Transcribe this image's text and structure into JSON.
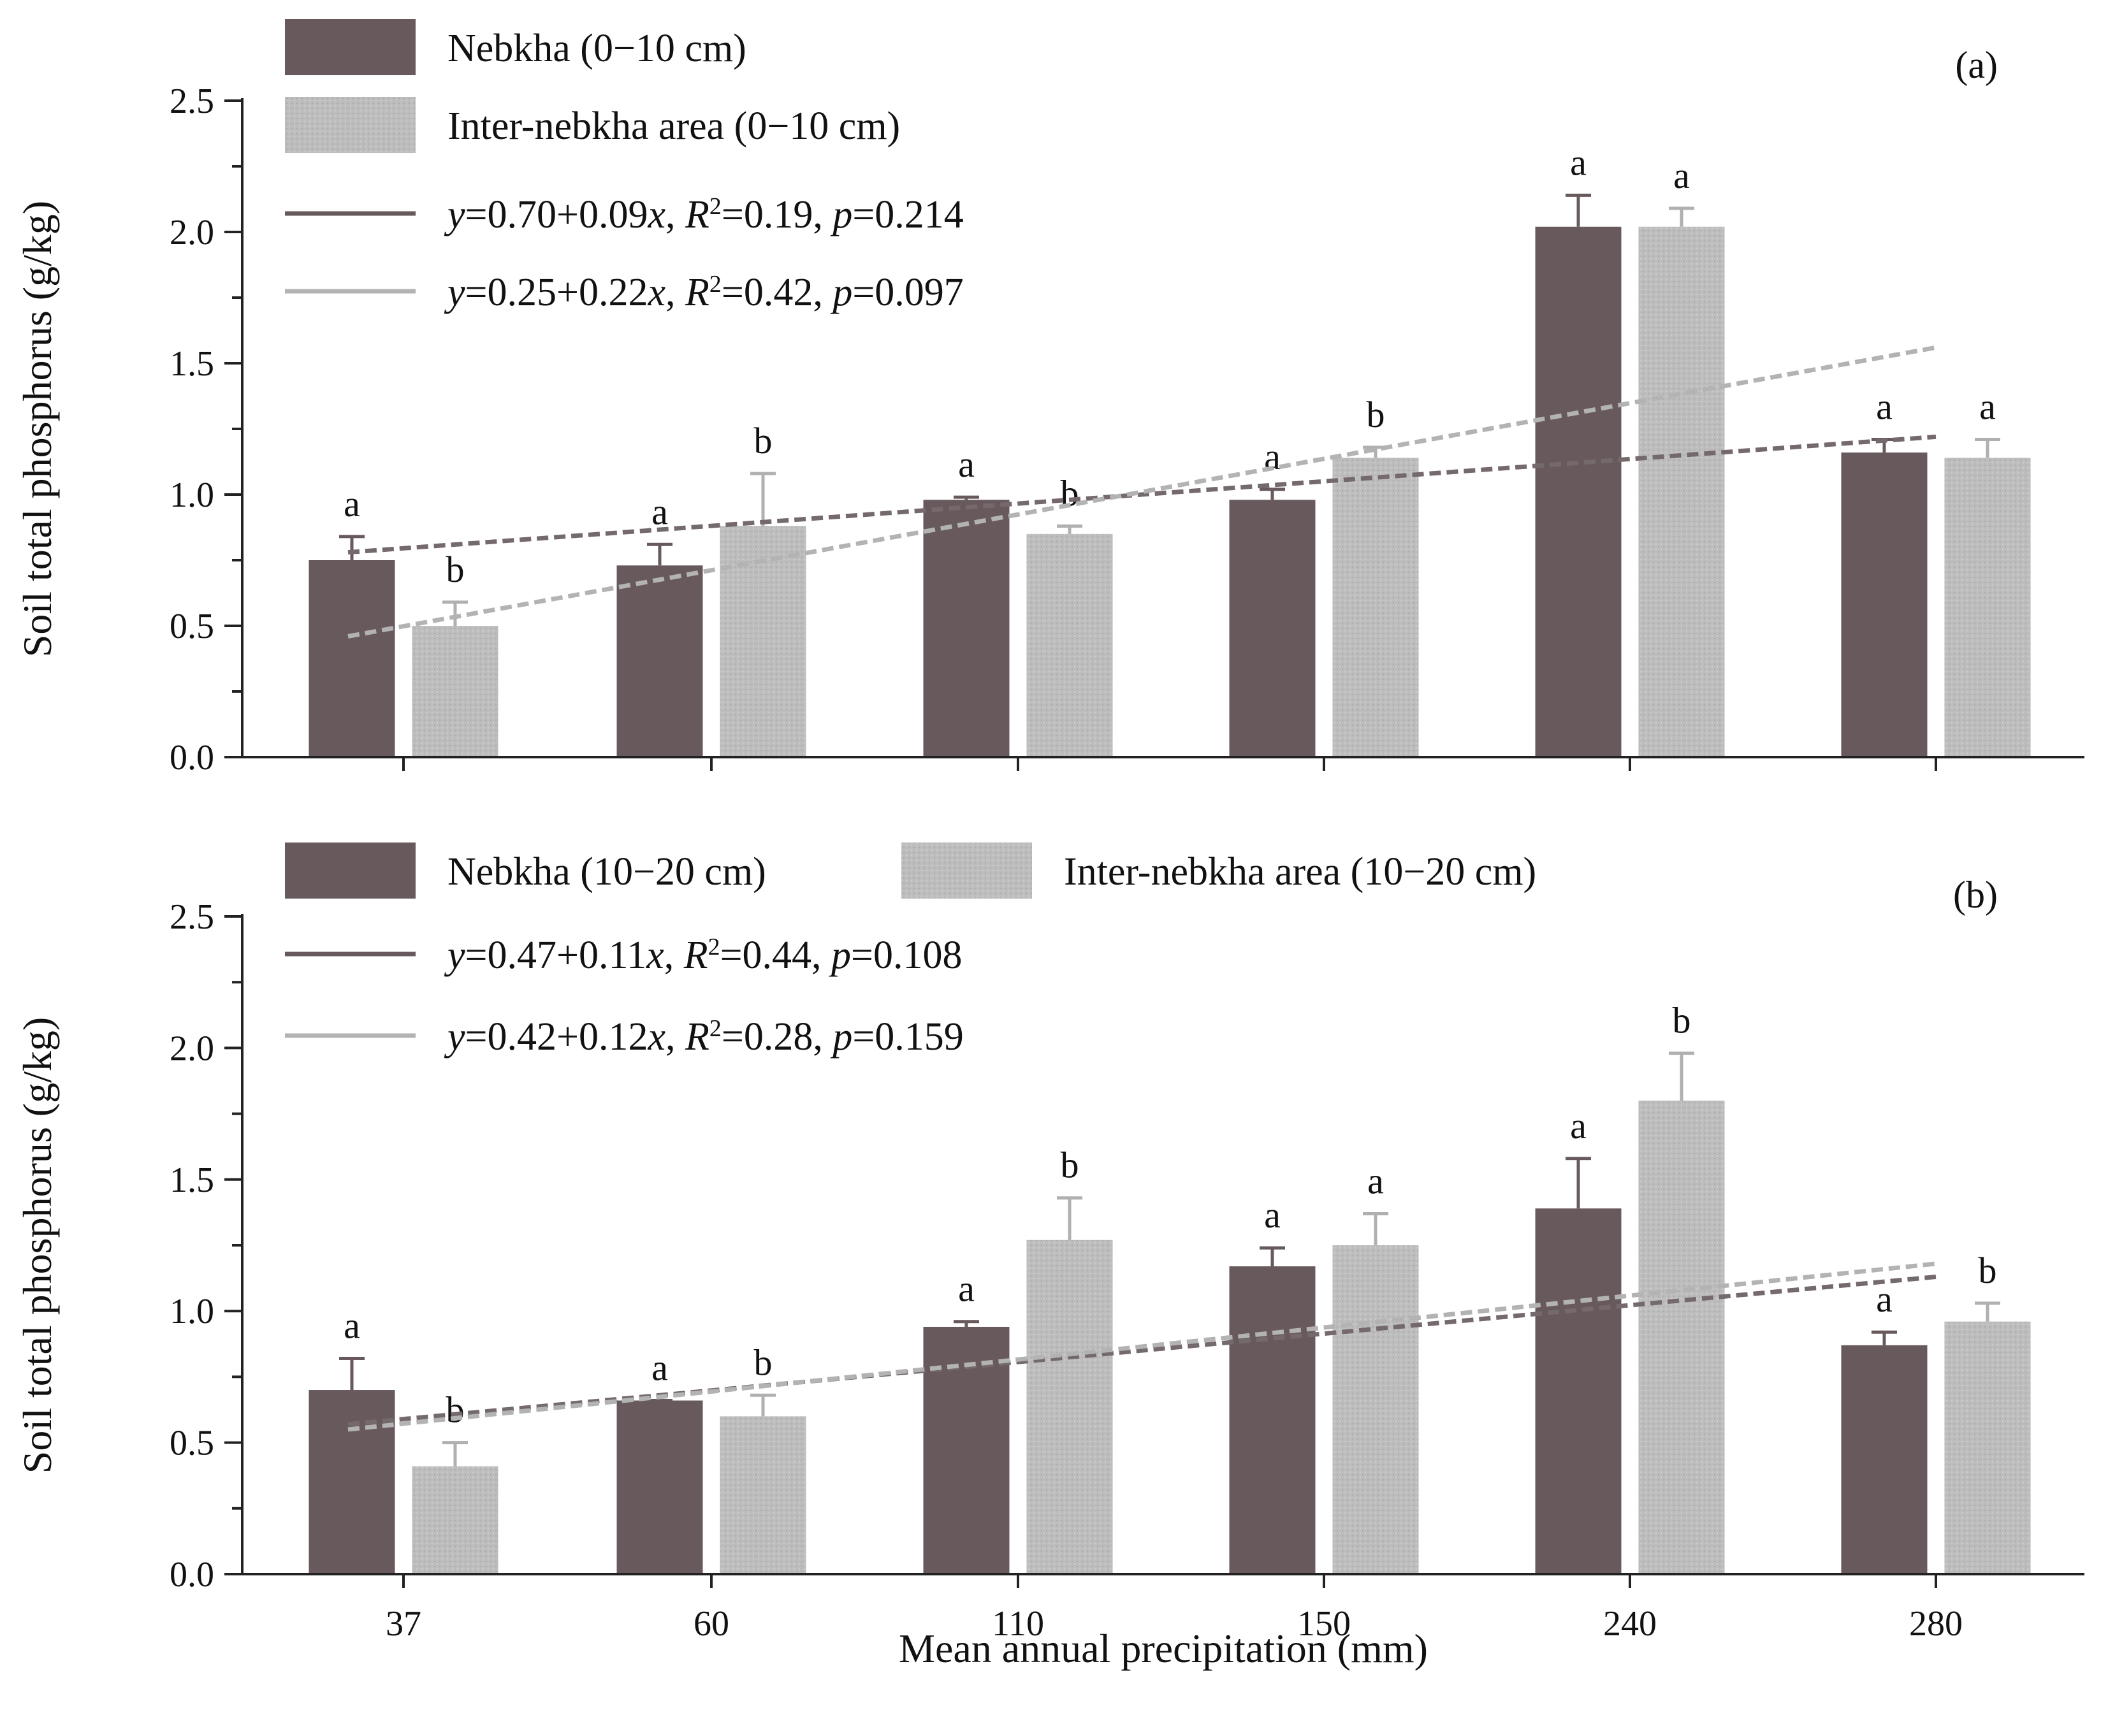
{
  "chart_data": [
    {
      "type": "bar",
      "panel_label": "(a)",
      "categories": [
        "37",
        "60",
        "110",
        "150",
        "240",
        "280"
      ],
      "xlabel": "",
      "ylabel": "Soil total phosphorus (g/kg)",
      "ylim": [
        0,
        2.5
      ],
      "yticks": [
        "0.0",
        "0.5",
        "1.0",
        "1.5",
        "2.0",
        "2.5"
      ],
      "grid": false,
      "legend_position": "top-left",
      "series": [
        {
          "name": "Nebkha (0−10 cm)",
          "color": "#685a5c",
          "values": [
            0.75,
            0.73,
            0.98,
            0.98,
            2.02,
            1.16
          ],
          "errors": [
            0.09,
            0.08,
            0.01,
            0.04,
            0.12,
            0.05
          ],
          "significance": [
            "a",
            "a",
            "a",
            "a",
            "a",
            "a"
          ]
        },
        {
          "name": "Inter-nebkha area (0−10 cm)",
          "color": "#b9b9b9",
          "values": [
            0.5,
            0.88,
            0.85,
            1.14,
            2.02,
            1.14
          ],
          "errors": [
            0.09,
            0.2,
            0.03,
            0.04,
            0.07,
            0.07
          ],
          "significance": [
            "b",
            "b",
            "b",
            "b",
            "a",
            "a"
          ]
        }
      ],
      "trendlines": [
        {
          "label_parts": [
            "y",
            "=0.70+0.09",
            "x",
            ", ",
            "R",
            "2",
            "=0.19, ",
            "p",
            "=0.214"
          ],
          "color": "#685a5c",
          "start": 0.78,
          "end": 1.22
        },
        {
          "label_parts": [
            "y",
            "=0.25+0.22",
            "x",
            ", ",
            "R",
            "2",
            "=0.42, ",
            "p",
            "=0.097"
          ],
          "color": "#b9b9b9",
          "start": 0.46,
          "end": 1.56
        }
      ]
    },
    {
      "type": "bar",
      "panel_label": "(b)",
      "categories": [
        "37",
        "60",
        "110",
        "150",
        "240",
        "280"
      ],
      "xlabel": "Mean annual precipitation (mm)",
      "ylabel": "Soil total phosphorus (g/kg)",
      "ylim": [
        0,
        2.5
      ],
      "yticks": [
        "0.0",
        "0.5",
        "1.0",
        "1.5",
        "2.0",
        "2.5"
      ],
      "grid": false,
      "legend_position": "top-left",
      "series": [
        {
          "name": "Nebkha (10−20 cm)",
          "color": "#685a5c",
          "values": [
            0.7,
            0.66,
            0.94,
            1.17,
            1.39,
            0.87
          ],
          "errors": [
            0.12,
            0.0,
            0.02,
            0.07,
            0.19,
            0.05
          ],
          "significance": [
            "a",
            "a",
            "a",
            "a",
            "a",
            "a"
          ]
        },
        {
          "name": "Inter-nebkha area (10−20 cm)",
          "color": "#b9b9b9",
          "values": [
            0.41,
            0.6,
            1.27,
            1.25,
            1.8,
            0.96
          ],
          "errors": [
            0.09,
            0.08,
            0.16,
            0.12,
            0.18,
            0.07
          ],
          "significance": [
            "b",
            "b",
            "b",
            "a",
            "b",
            "b"
          ]
        }
      ],
      "trendlines": [
        {
          "label_parts": [
            "y",
            "=0.47+0.11",
            "x",
            ", ",
            "R",
            "2",
            "=0.44, ",
            "p",
            "=0.108"
          ],
          "color": "#685a5c",
          "start": 0.57,
          "end": 1.13
        },
        {
          "label_parts": [
            "y",
            "=0.42+0.12",
            "x",
            ", ",
            "R",
            "2",
            "=0.28, ",
            "p",
            "=0.159"
          ],
          "color": "#b9b9b9",
          "start": 0.55,
          "end": 1.18
        }
      ]
    }
  ]
}
